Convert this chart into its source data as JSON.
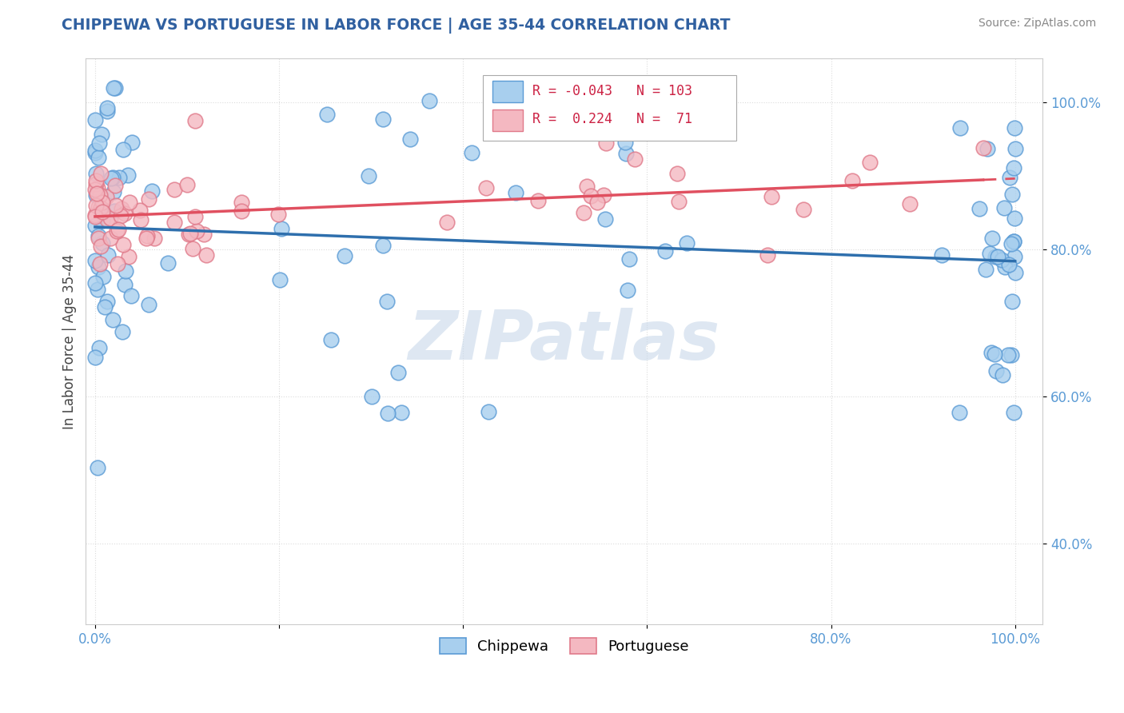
{
  "title": "CHIPPEWA VS PORTUGUESE IN LABOR FORCE | AGE 35-44 CORRELATION CHART",
  "source_text": "Source: ZipAtlas.com",
  "ylabel": "In Labor Force | Age 35-44",
  "chippewa_R": -0.043,
  "chippewa_N": 103,
  "portuguese_R": 0.224,
  "portuguese_N": 71,
  "chippewa_color": "#A8CFEE",
  "chippewa_edge": "#5B9BD5",
  "portuguese_color": "#F4B8C1",
  "portuguese_edge": "#E07A8A",
  "trend_chippewa_color": "#2E6FAD",
  "trend_portuguese_color": "#E05060",
  "background_color": "#FFFFFF",
  "watermark": "ZIPatlas",
  "watermark_color": "#C8D8EA",
  "title_color": "#3060A0",
  "source_color": "#888888",
  "ylabel_color": "#444444",
  "tick_color": "#5B9BD5",
  "grid_color": "#CCCCCC",
  "legend_border_color": "#AAAAAA"
}
